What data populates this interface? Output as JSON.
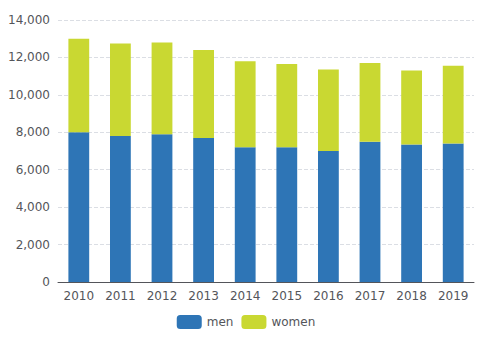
{
  "chart_data": {
    "type": "bar",
    "stacked": true,
    "categories": [
      "2010",
      "2011",
      "2012",
      "2013",
      "2014",
      "2015",
      "2016",
      "2017",
      "2018",
      "2019"
    ],
    "series": [
      {
        "name": "men",
        "color": "#2E75B6",
        "values": [
          8000,
          7800,
          7900,
          7700,
          7200,
          7200,
          7000,
          7500,
          7350,
          7400
        ]
      },
      {
        "name": "women",
        "color": "#C9D832",
        "values": [
          5000,
          4950,
          4900,
          4700,
          4600,
          4450,
          4350,
          4200,
          3950,
          4150
        ]
      }
    ],
    "ylim": [
      0,
      14000
    ],
    "yticks": [
      0,
      {
        "value": 2000,
        "label": "2,000"
      },
      {
        "value": 4000,
        "label": "4,000"
      },
      {
        "value": 6000,
        "label": "6,000"
      },
      {
        "value": 8000,
        "label": "8,000"
      },
      {
        "value": 10000,
        "label": "10,000"
      },
      {
        "value": 12000,
        "label": "12,000"
      },
      {
        "value": 14000,
        "label": "14,000"
      }
    ],
    "grid": true,
    "legend": "bottom"
  }
}
